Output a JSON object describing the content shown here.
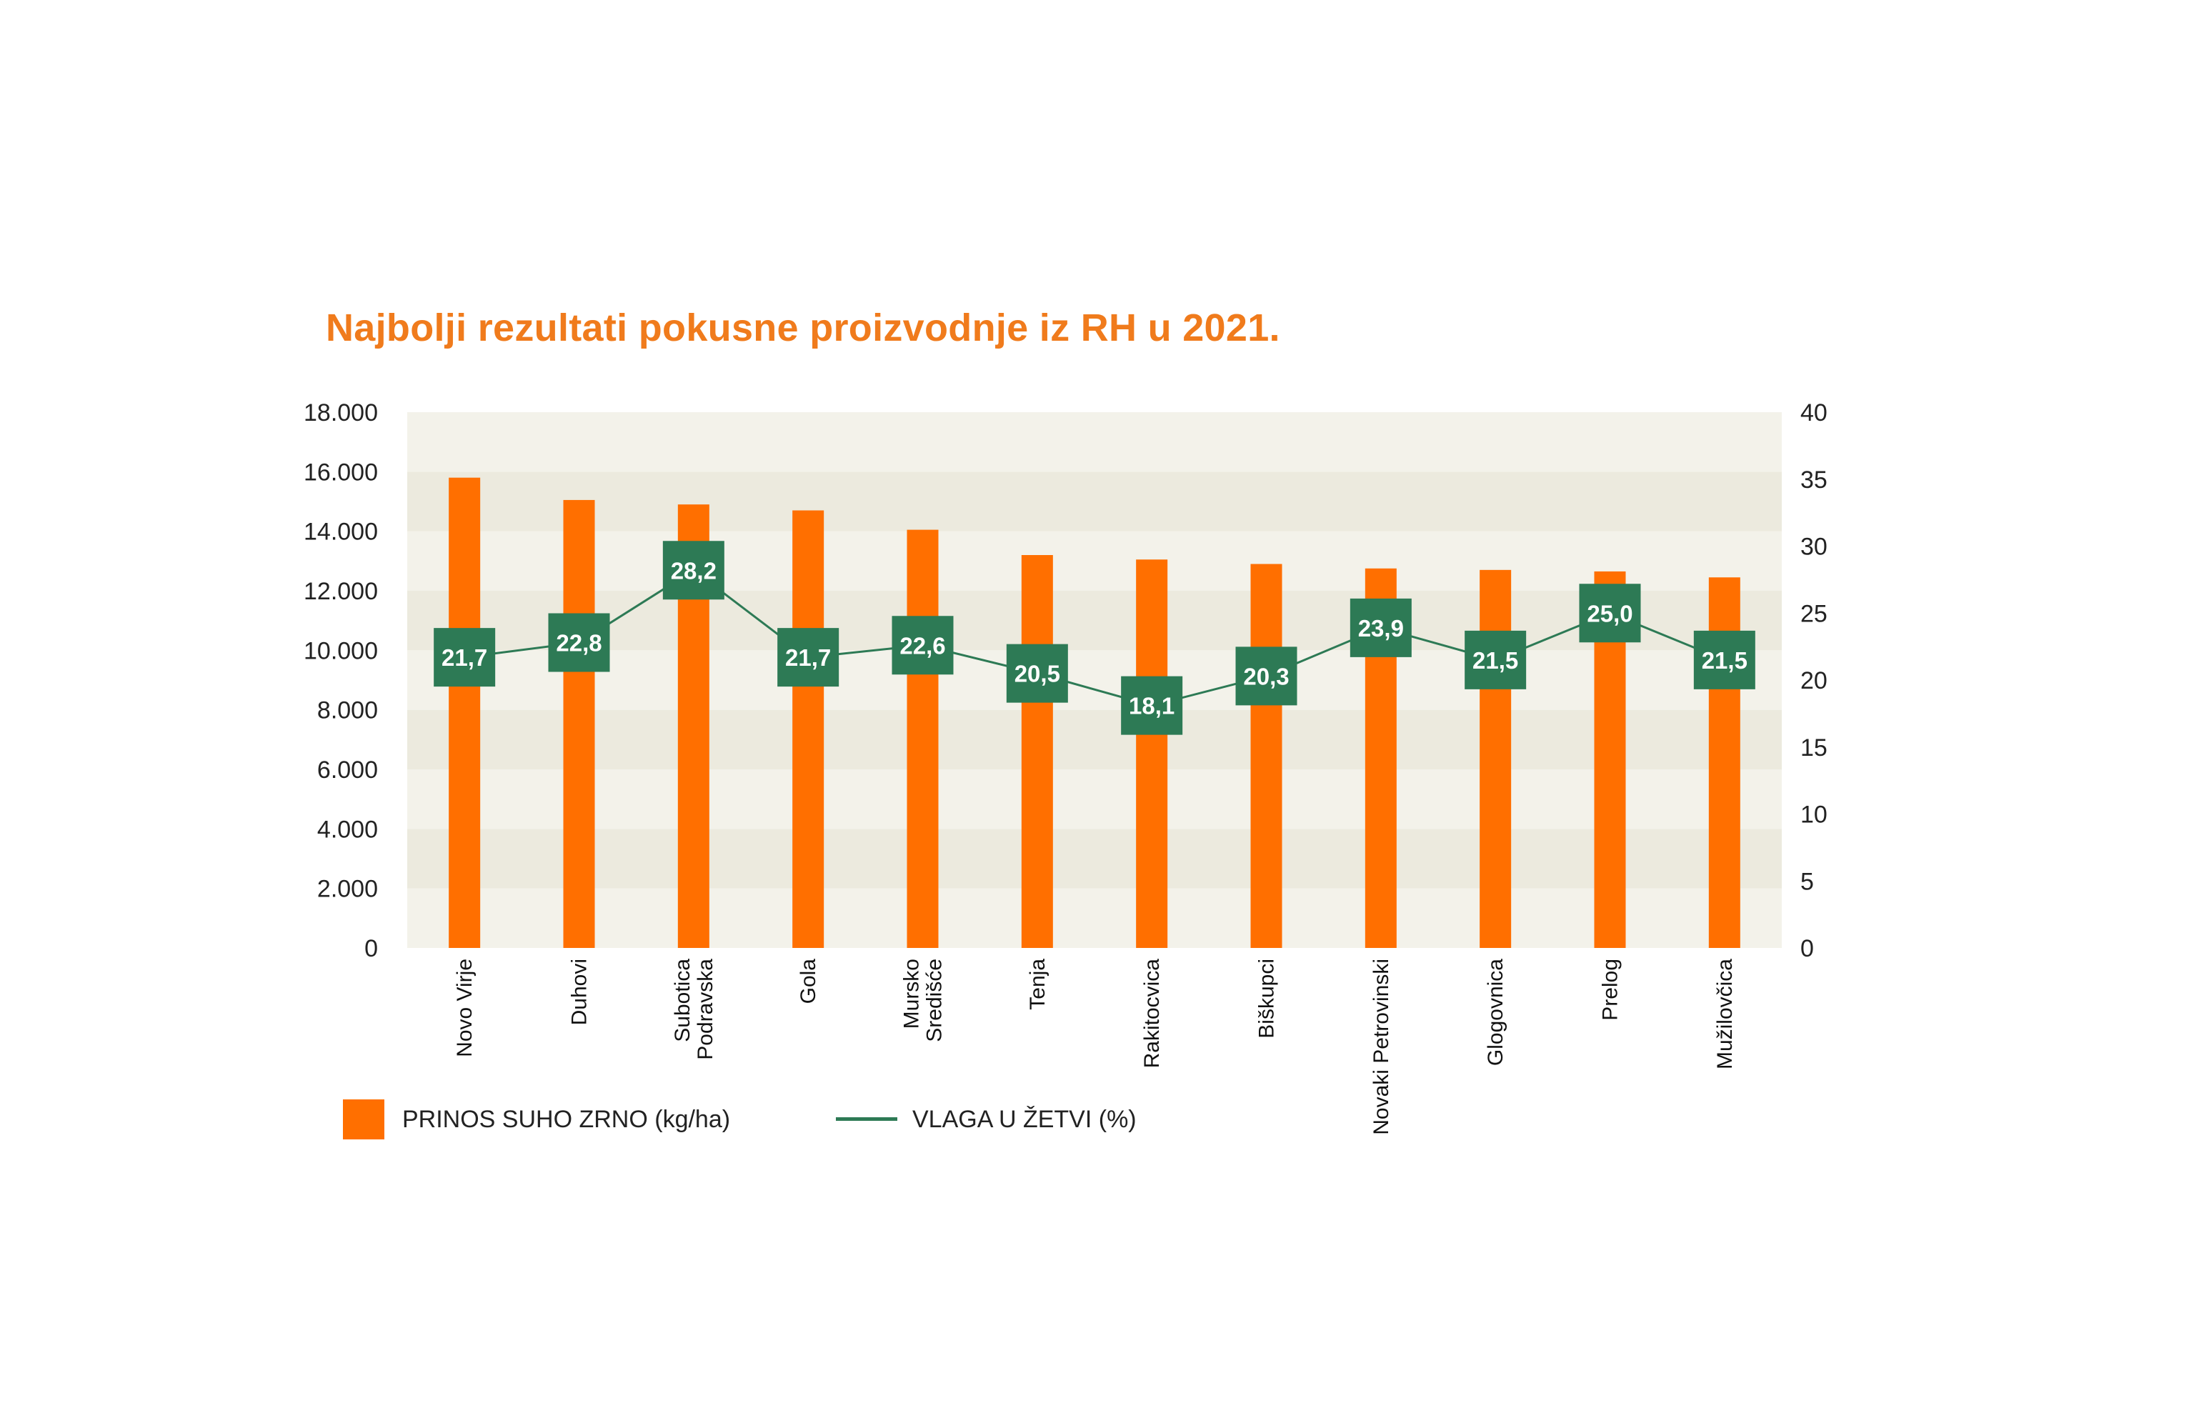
{
  "chart_data": {
    "type": "bar+line",
    "title": "Najbolji rezultati pokusne proizvodnje iz RH u 2021.",
    "categories": [
      [
        "Novo Virje"
      ],
      [
        "Duhovi"
      ],
      [
        "Subotica",
        "Podravska"
      ],
      [
        "Gola"
      ],
      [
        "Mursko",
        "Središće"
      ],
      [
        "Tenja"
      ],
      [
        "Rakitocvica"
      ],
      [
        "Biškupci"
      ],
      [
        "Novaki Petrovinski"
      ],
      [
        "Glogovnica"
      ],
      [
        "Prelog"
      ],
      [
        "Mužilovčica"
      ]
    ],
    "series": [
      {
        "name": "PRINOS SUHO ZRNO (kg/ha)",
        "type": "bar",
        "axis": "left",
        "color": "#ff6f00",
        "values": [
          15800,
          15050,
          14900,
          14700,
          14050,
          13200,
          13050,
          12900,
          12750,
          12700,
          12650,
          12450
        ]
      },
      {
        "name": "VLAGA U ŽETVI (%)",
        "type": "line",
        "axis": "right",
        "color": "#2d7a55",
        "values": [
          21.7,
          22.8,
          28.2,
          21.7,
          22.6,
          20.5,
          18.1,
          20.3,
          23.9,
          21.5,
          25.0,
          21.5
        ],
        "labels": [
          "21,7",
          "22,8",
          "28,2",
          "21,7",
          "22,6",
          "20,5",
          "18,1",
          "20,3",
          "23,9",
          "21,5",
          "25,0",
          "21,5"
        ]
      }
    ],
    "y_left": {
      "min": 0,
      "max": 18000,
      "step": 2000,
      "tick_labels": [
        "0",
        "2.000",
        "4.000",
        "6.000",
        "8.000",
        "10.000",
        "12.000",
        "14.000",
        "16.000",
        "18.000"
      ]
    },
    "y_right": {
      "min": 0,
      "max": 40,
      "step": 5,
      "tick_labels": [
        "0",
        "5",
        "10",
        "15",
        "20",
        "25",
        "30",
        "35",
        "40"
      ]
    },
    "background_bands": [
      "#f3f2ea",
      "#eceade"
    ],
    "legend_placement": "bottom-left"
  }
}
